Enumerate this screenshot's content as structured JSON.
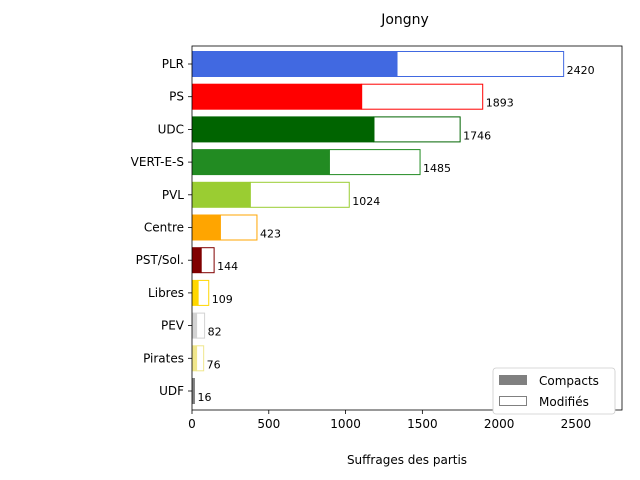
{
  "chart_data": {
    "type": "bar",
    "orientation": "horizontal",
    "title": "Jongny",
    "xlabel": "Suffrages des partis",
    "ylabel": "",
    "xlim": [
      0,
      2800
    ],
    "xticks": [
      0,
      500,
      1000,
      1500,
      2000,
      2500
    ],
    "grid": false,
    "legend_position": "bottom-right",
    "legend": [
      {
        "name": "Compacts",
        "style": "filled",
        "color": "#808080"
      },
      {
        "name": "Modifiés",
        "style": "outline",
        "color": "#808080"
      }
    ],
    "categories": [
      "PLR",
      "PS",
      "UDC",
      "VERT-E-S",
      "PVL",
      "Centre",
      "PST/Sol.",
      "Libres",
      "PEV",
      "Pirates",
      "UDF"
    ],
    "colors": [
      "#4169e1",
      "#ff0000",
      "#006400",
      "#228b22",
      "#9acd32",
      "#ffa500",
      "#800000",
      "#ffd700",
      "#d3d3d3",
      "#f0e68c",
      "#808080"
    ],
    "series": [
      {
        "name": "Compacts",
        "values": [
          1335,
          1105,
          1185,
          895,
          380,
          185,
          60,
          40,
          30,
          30,
          10
        ]
      },
      {
        "name": "Modifiés",
        "values": [
          1085,
          788,
          561,
          590,
          644,
          238,
          84,
          69,
          52,
          46,
          6
        ]
      }
    ],
    "totals": [
      2420,
      1893,
      1746,
      1485,
      1024,
      423,
      144,
      109,
      82,
      76,
      16
    ]
  }
}
